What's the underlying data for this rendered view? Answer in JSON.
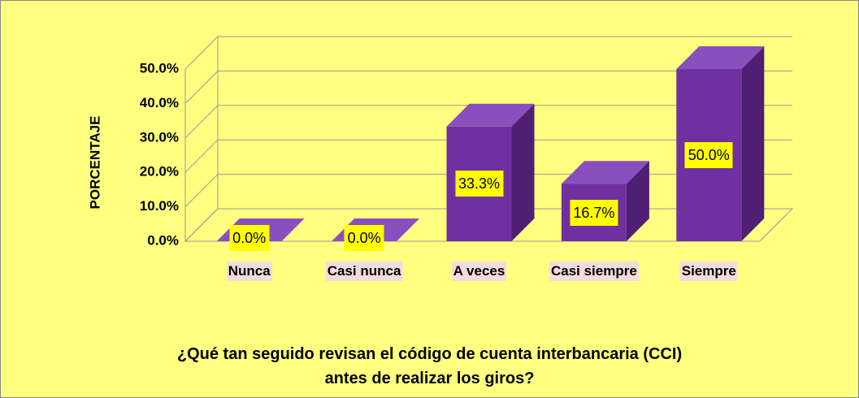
{
  "chart_data": {
    "type": "bar3d",
    "ylabel": "PORCENTAJE",
    "xlabel": [
      "¿Qué tan seguido revisan el código de  cuenta interbancaria (CCI)",
      "antes de realizar los giros?"
    ],
    "categories": [
      "Nunca",
      "Casi nunca",
      "A veces",
      "Casi siempre",
      "Siempre"
    ],
    "values": [
      0,
      0,
      33.3,
      16.7,
      50
    ],
    "value_labels": [
      "0.0%",
      "0.0%",
      "33.3%",
      "16.7%",
      "50.0%"
    ],
    "color": "#7030a0",
    "ylim": [
      0,
      50
    ],
    "yticks": [
      {
        "value": 0,
        "label": "0.0%"
      },
      {
        "value": 10,
        "label": "10.0%"
      },
      {
        "value": 20,
        "label": "20.0%"
      },
      {
        "value": 30,
        "label": "30.0%"
      },
      {
        "value": 40,
        "label": "40.0%"
      },
      {
        "value": 50,
        "label": "50.0%"
      }
    ],
    "grid": true
  }
}
